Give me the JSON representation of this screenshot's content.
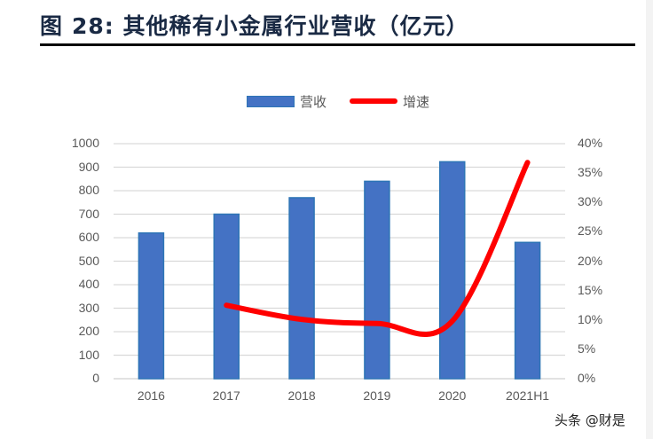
{
  "title": {
    "prefix": "图",
    "number": "28:",
    "text": "其他稀有小金属行业营收（亿元）"
  },
  "legend": {
    "revenue_label": "营收",
    "growth_label": "增速"
  },
  "left_axis": {
    "ticks": [
      "1000",
      "900",
      "800",
      "700",
      "600",
      "500",
      "400",
      "300",
      "200",
      "100",
      "0"
    ]
  },
  "right_axis": {
    "ticks": [
      "40%",
      "35%",
      "30%",
      "25%",
      "20%",
      "15%",
      "10%",
      "5%",
      "0%"
    ]
  },
  "x_axis": {
    "ticks": [
      "2016",
      "2017",
      "2018",
      "2019",
      "2020",
      "2021H1"
    ]
  },
  "watermark": "头条 @财是",
  "colors": {
    "bar": "#4472c4",
    "bar_border": "#2e75b6",
    "line": "#ff0000",
    "grid": "#d9d9d9",
    "axis_text": "#595959"
  },
  "chart_data": {
    "type": "bar",
    "title": "图 28: 其他稀有小金属行业营收（亿元）",
    "categories": [
      "2016",
      "2017",
      "2018",
      "2019",
      "2020",
      "2021H1"
    ],
    "series": [
      {
        "name": "营收",
        "type": "bar",
        "axis": "left",
        "values": [
          620,
          700,
          770,
          840,
          923,
          580
        ]
      },
      {
        "name": "增速",
        "type": "line",
        "axis": "right",
        "values": [
          null,
          12.5,
          10.1,
          9.4,
          9.8,
          36.8
        ],
        "unit": "%"
      }
    ],
    "xlabel": "",
    "ylabel": "",
    "ylim": [
      0,
      1000
    ],
    "y2lim": [
      0,
      40
    ],
    "y2_ticks_percent": true,
    "grid": true,
    "legend_position": "top"
  }
}
